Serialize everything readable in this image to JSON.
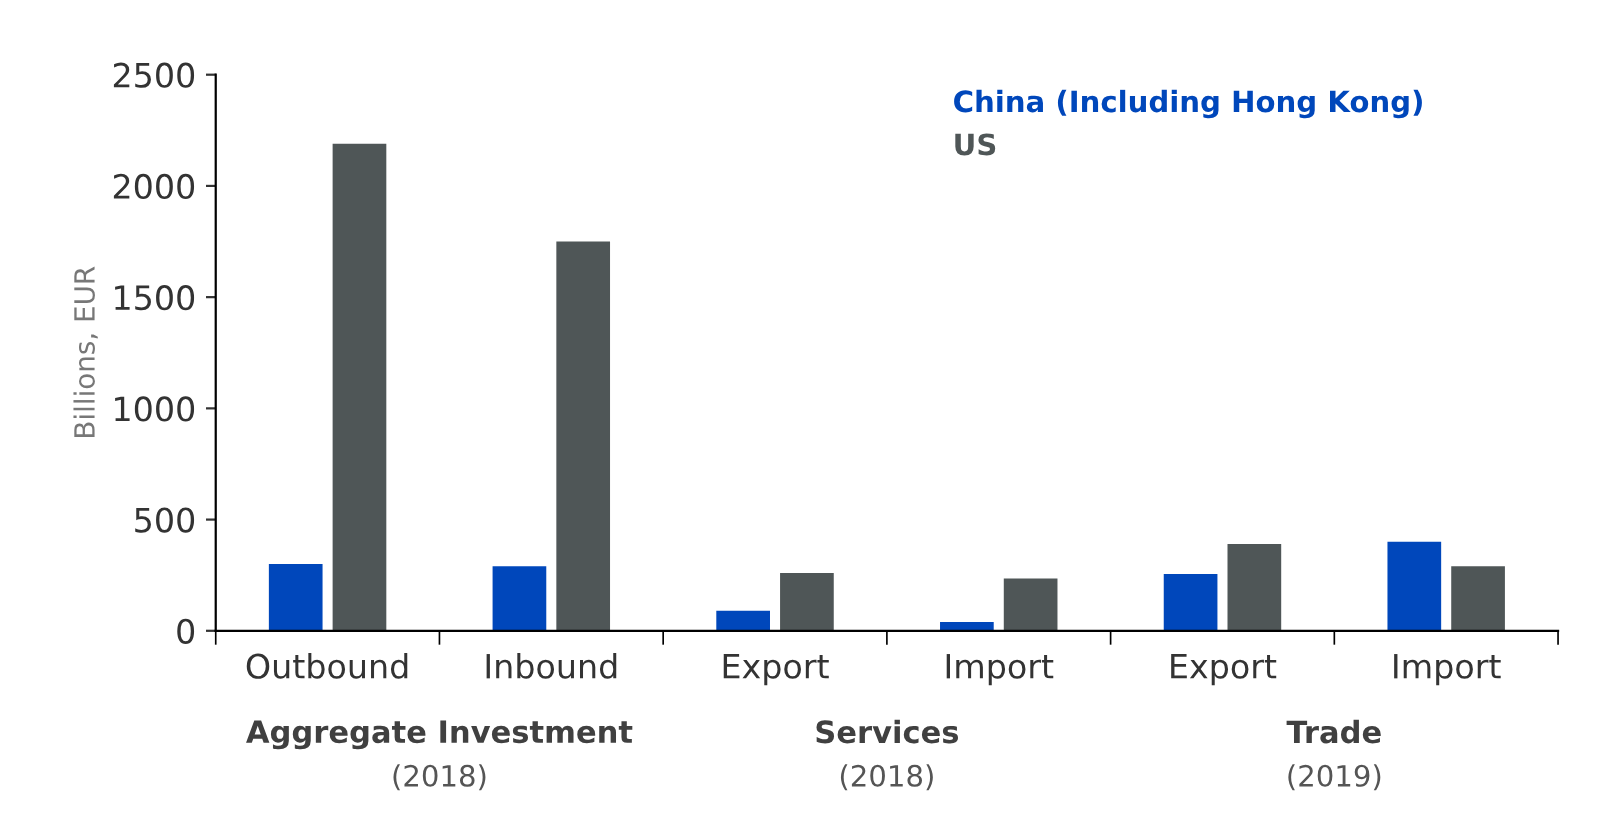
{
  "chart_data": {
    "type": "bar",
    "ylabel": "Billions, EUR",
    "categories": [
      "Outbound",
      "Inbound",
      "Export",
      "Import",
      "Export",
      "Import"
    ],
    "series": [
      {
        "name": "China (Including Hong Kong)",
        "color": "#0047bb",
        "values": [
          300,
          290,
          90,
          40,
          255,
          400
        ]
      },
      {
        "name": "US",
        "color": "#4f5657",
        "values": [
          2190,
          1750,
          260,
          235,
          390,
          290
        ]
      }
    ],
    "ylim": [
      0,
      2500
    ],
    "yticks": [
      0,
      500,
      1000,
      1500,
      2000,
      2500
    ],
    "grid": false,
    "legend": "top right",
    "annotations": [
      "Aggregate Investment\n(2018)",
      "Services\n(2018)",
      "Trade\n(2019)"
    ]
  }
}
